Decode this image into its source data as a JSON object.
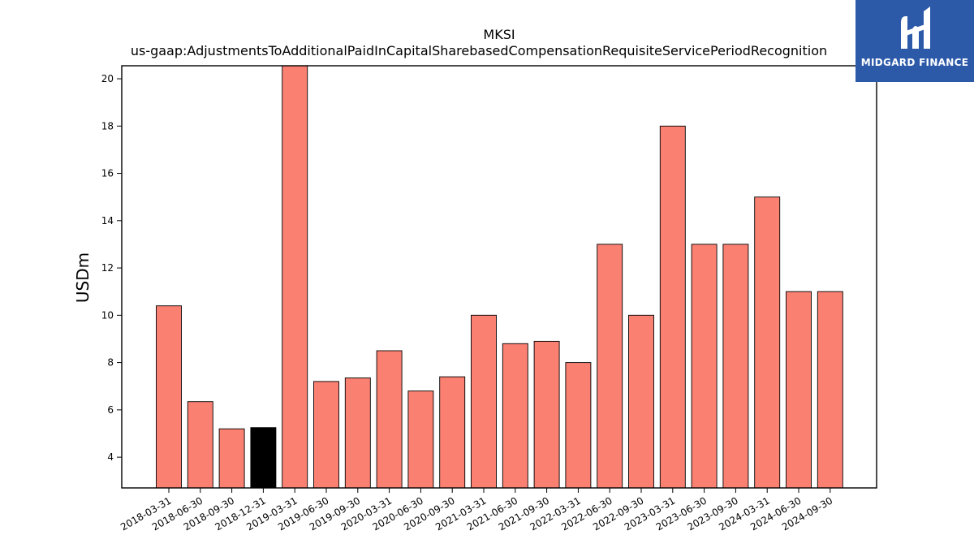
{
  "chart_data": {
    "type": "bar",
    "title": "MKSI",
    "subtitle": "us-gaap:AdjustmentsToAdditionalPaidInCapitalSharebasedCompensationRequisiteServicePeriodRecognition",
    "xlabel": "",
    "ylabel": "USDm",
    "ylim": [
      2.7,
      20.55
    ],
    "yticks": [
      4,
      6,
      8,
      10,
      12,
      14,
      16,
      18,
      20
    ],
    "grid": false,
    "categories": [
      "2018-03-31",
      "2018-06-30",
      "2018-09-30",
      "2018-12-31",
      "2019-03-31",
      "2019-06-30",
      "2019-09-30",
      "2020-03-31",
      "2020-06-30",
      "2020-09-30",
      "2021-03-31",
      "2021-06-30",
      "2021-09-30",
      "2022-03-31",
      "2022-06-30",
      "2022-09-30",
      "2023-03-31",
      "2023-06-30",
      "2023-09-30",
      "2024-03-31",
      "2024-06-30",
      "2024-09-30"
    ],
    "values": [
      10.4,
      6.35,
      5.2,
      5.25,
      21.0,
      7.2,
      7.35,
      8.5,
      6.8,
      7.4,
      10.0,
      8.8,
      8.9,
      8.0,
      13.0,
      10.0,
      18.0,
      13.0,
      13.0,
      15.0,
      11.0,
      11.0
    ],
    "bar_color": "#fa8072",
    "highlight_index": 3,
    "highlight_color": "#000000"
  },
  "logo": {
    "text": "MIDGARD FINANCE",
    "background": "#2c5aa9"
  }
}
